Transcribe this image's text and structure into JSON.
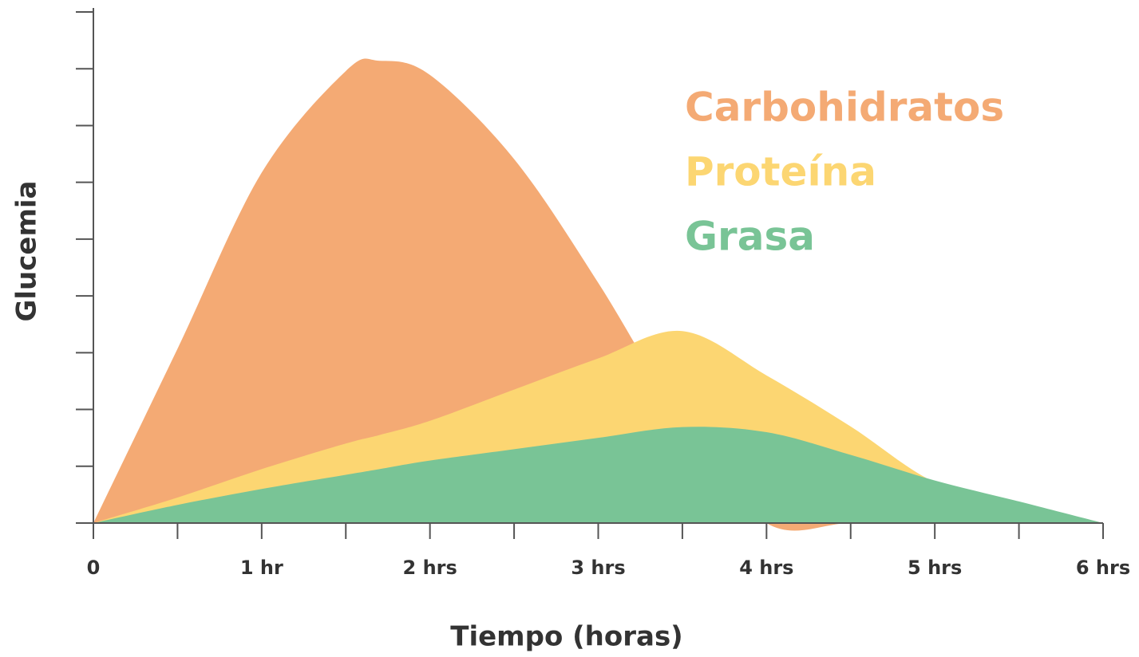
{
  "chart_data": {
    "type": "area",
    "x_label": "Tiempo (horas)",
    "y_label": "Glucemia",
    "x": [
      0,
      0.5,
      1,
      1.5,
      1.7,
      2,
      2.5,
      3,
      3.5,
      4,
      4.5,
      5,
      5.5,
      6
    ],
    "series": [
      {
        "name": "Carbohidratos",
        "color": "#f4aa74",
        "values": [
          0,
          3.07,
          6.17,
          7.96,
          8.14,
          7.89,
          6.41,
          4.23,
          1.8,
          0,
          0,
          0,
          0,
          0
        ]
      },
      {
        "name": "Proteína",
        "color": "#fcd672",
        "values": [
          0,
          0.45,
          0.95,
          1.4,
          1.55,
          1.8,
          2.35,
          2.9,
          3.38,
          2.6,
          1.7,
          0.72,
          0.36,
          0
        ]
      },
      {
        "name": "Grasa",
        "color": "#79c496",
        "values": [
          0,
          0.32,
          0.6,
          0.85,
          0.95,
          1.1,
          1.3,
          1.5,
          1.69,
          1.6,
          1.2,
          0.75,
          0.38,
          0
        ]
      }
    ],
    "xlim": [
      0,
      6
    ],
    "xticks": [
      0,
      {
        "value": 1,
        "label": "1 hr"
      },
      {
        "value": 2,
        "label": "2 hrs"
      },
      {
        "value": 3,
        "label": "3 hrs"
      },
      {
        "value": 4,
        "label": "4 hrs"
      },
      {
        "value": 5,
        "label": "5 hrs"
      },
      {
        "value": 6,
        "label": "6 hrs"
      }
    ],
    "xminor_ticks": [
      0.5,
      1.5,
      2.5,
      3.5,
      4.5,
      5.5
    ],
    "ylim": [
      0,
      9
    ],
    "yticks": [
      0,
      1,
      2,
      3,
      4,
      5,
      6,
      7,
      8,
      9
    ],
    "ytick_labels_shown": false,
    "grid": false,
    "legend": "upper right"
  }
}
